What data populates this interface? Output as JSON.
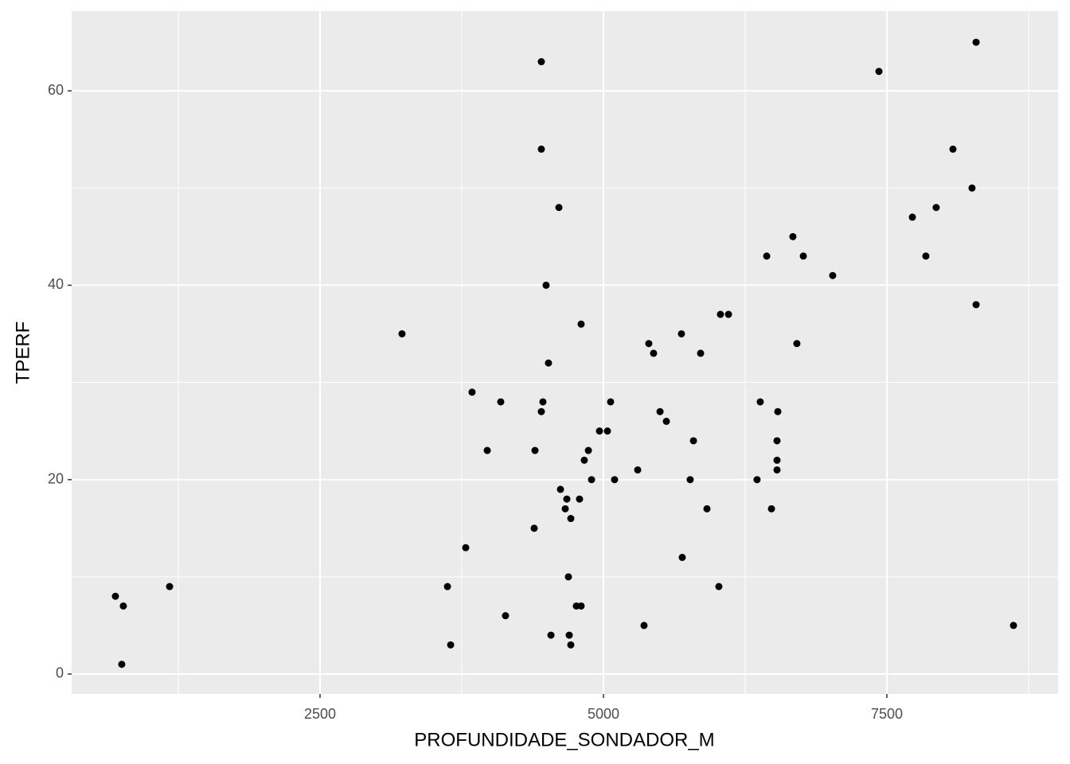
{
  "chart_data": {
    "type": "scatter",
    "xlabel": "PROFUNDIDADE_SONDADOR_M",
    "ylabel": "TPERF",
    "color": "#000000",
    "panel_color": "#ebebeb",
    "grid": true,
    "xlim": [
      309,
      9010
    ],
    "ylim": [
      -2.05,
      68.2
    ],
    "xticks": [
      2500,
      5000,
      7500
    ],
    "yticks": [
      0,
      20,
      40,
      60
    ],
    "x_minor_breaks": [
      1250,
      3750,
      6250,
      8750
    ],
    "y_minor_breaks": [
      10,
      30,
      50
    ],
    "x": [
      695,
      765,
      751,
      1173,
      3223,
      3624,
      3652,
      3785,
      3841,
      3975,
      4094,
      4136,
      4389,
      4396,
      4452,
      4452,
      4452,
      4466,
      4494,
      4515,
      4537,
      4607,
      4621,
      4663,
      4677,
      4691,
      4698,
      4712,
      4712,
      4761,
      4803,
      4789,
      4803,
      4831,
      4867,
      4895,
      4965,
      5035,
      5063,
      5098,
      5302,
      5358,
      5400,
      5442,
      5499,
      5555,
      5688,
      5695,
      5765,
      5794,
      5857,
      5913,
      6018,
      6032,
      6103,
      6355,
      6383,
      6440,
      6482,
      6531,
      6531,
      6531,
      6538,
      6671,
      6706,
      6763,
      7022,
      7430,
      7725,
      7844,
      7935,
      8083,
      8251,
      8287,
      8287,
      8617
    ],
    "values": [
      8,
      7,
      1,
      9,
      35,
      9,
      3,
      13,
      29,
      23,
      28,
      6,
      15,
      23,
      63,
      54,
      27,
      28,
      40,
      32,
      4,
      48,
      19,
      17,
      18,
      10,
      4,
      3,
      16,
      7,
      7,
      18,
      36,
      22,
      23,
      20,
      25,
      25,
      28,
      20,
      21,
      5,
      34,
      33,
      27,
      26,
      35,
      12,
      20,
      24,
      33,
      17,
      9,
      37,
      37,
      20,
      28,
      43,
      17,
      21,
      22,
      24,
      27,
      45,
      34,
      43,
      41,
      62,
      47,
      43,
      48,
      54,
      50,
      65,
      38,
      5
    ]
  }
}
